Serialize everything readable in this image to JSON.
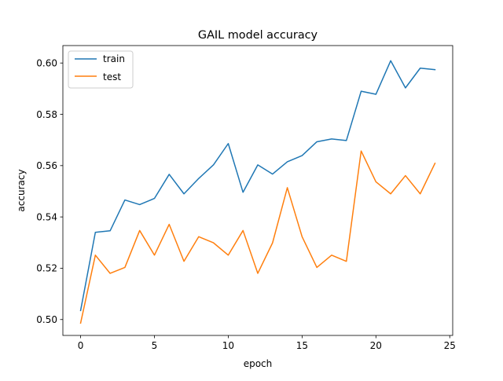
{
  "chart_data": {
    "type": "line",
    "title": "GAIL model accuracy",
    "xlabel": "epoch",
    "ylabel": "accuracy",
    "xlim": [
      -1.2,
      25.2
    ],
    "ylim": [
      0.4938,
      0.6068
    ],
    "xticks": [
      0,
      5,
      10,
      15,
      20,
      25
    ],
    "xtick_labels": [
      "0",
      "5",
      "10",
      "15",
      "20",
      "25"
    ],
    "yticks": [
      0.5,
      0.52,
      0.54,
      0.56,
      0.58,
      0.6
    ],
    "ytick_labels": [
      "0.50",
      "0.52",
      "0.54",
      "0.56",
      "0.58",
      "0.60"
    ],
    "grid": false,
    "legend_position": "upper left",
    "x": [
      0,
      1,
      2,
      3,
      4,
      5,
      6,
      7,
      8,
      9,
      10,
      11,
      12,
      13,
      14,
      15,
      16,
      17,
      18,
      19,
      20,
      21,
      22,
      23,
      24
    ],
    "series": [
      {
        "name": "train",
        "color": "#1f77b4",
        "values": [
          0.5035,
          0.534,
          0.5346,
          0.5466,
          0.5448,
          0.5472,
          0.5566,
          0.549,
          0.555,
          0.5603,
          0.5686,
          0.5496,
          0.5603,
          0.5567,
          0.5615,
          0.5639,
          0.5693,
          0.5704,
          0.5698,
          0.589,
          0.5878,
          0.6009,
          0.5903,
          0.598,
          0.5974
        ]
      },
      {
        "name": "test",
        "color": "#ff7f0e",
        "values": [
          0.4986,
          0.5251,
          0.518,
          0.5203,
          0.5347,
          0.5251,
          0.5371,
          0.5227,
          0.5323,
          0.5299,
          0.5251,
          0.5347,
          0.518,
          0.5299,
          0.5514,
          0.5323,
          0.5203,
          0.5251,
          0.5227,
          0.5657,
          0.5537,
          0.549,
          0.5561,
          0.549,
          0.5609
        ]
      }
    ]
  }
}
